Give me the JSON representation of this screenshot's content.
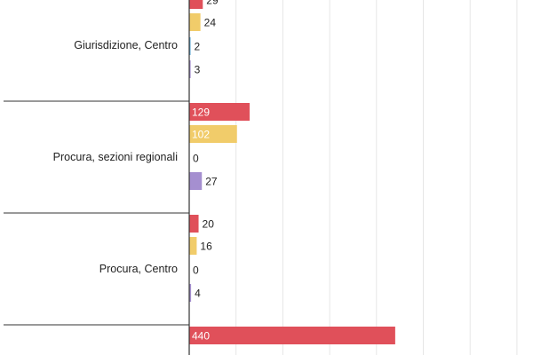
{
  "chart_data": {
    "type": "bar",
    "orientation": "horizontal",
    "categories": [
      "Giurisdizione, Centro",
      "Procura, sezioni regionali",
      "Procura, Centro",
      ""
    ],
    "series": [
      {
        "values": [
          29,
          129,
          20,
          440
        ],
        "color": "#e0505a"
      },
      {
        "values": [
          24,
          102,
          16,
          null
        ],
        "color": "#f1cc6a"
      },
      {
        "values": [
          2,
          0,
          0,
          null
        ],
        "color": "#5aa9d6"
      },
      {
        "values": [
          3,
          27,
          4,
          null
        ],
        "color": "#a58fd0"
      }
    ],
    "value_labels": [
      [
        "29",
        "24",
        "2",
        "3"
      ],
      [
        "129",
        "102",
        "0",
        "27"
      ],
      [
        "20",
        "16",
        "0",
        "4"
      ],
      [
        "440",
        "",
        "",
        ""
      ]
    ],
    "xlim": [
      0,
      750
    ],
    "grid": true,
    "legend": "none"
  }
}
